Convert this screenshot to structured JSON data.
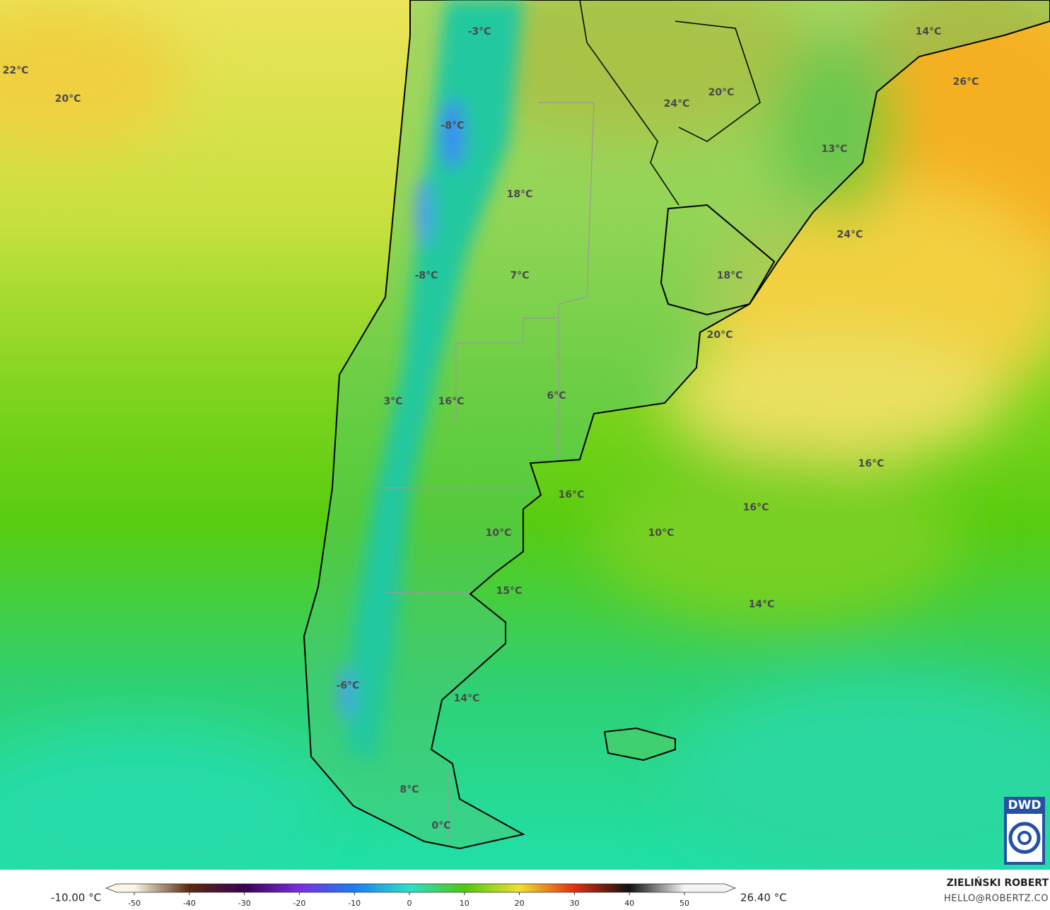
{
  "map": {
    "labels": [
      "22°C",
      "20°C",
      "-3°C",
      "14°C",
      "26°C",
      "20°C",
      "24°C",
      "-8°C",
      "13°C",
      "18°C",
      "24°C",
      "-8°C",
      "7°C",
      "18°C",
      "20°C",
      "3°C",
      "16°C",
      "6°C",
      "16°C",
      "16°C",
      "16°C",
      "10°C",
      "10°C",
      "15°C",
      "14°C",
      "-6°C",
      "14°C",
      "8°C",
      "0°C"
    ]
  },
  "colorbar": {
    "min_label": "-10.00 °C",
    "max_label": "26.40 °C",
    "ticks": [
      -50,
      -40,
      -30,
      -20,
      -10,
      0,
      10,
      20,
      30,
      40,
      50
    ],
    "colors": [
      "#fbf6e6",
      "#5a2a10",
      "#3a0050",
      "#7a2ee0",
      "#1a7ef0",
      "#2ee0c8",
      "#50c810",
      "#f0e030",
      "#e03010",
      "#101010",
      "#f4f4f4"
    ]
  },
  "credit": {
    "name": "ZIELIŃSKI ROBERT",
    "contact": "HELLO@ROBERTZ.CO"
  },
  "logo": {
    "text": "DWD"
  }
}
